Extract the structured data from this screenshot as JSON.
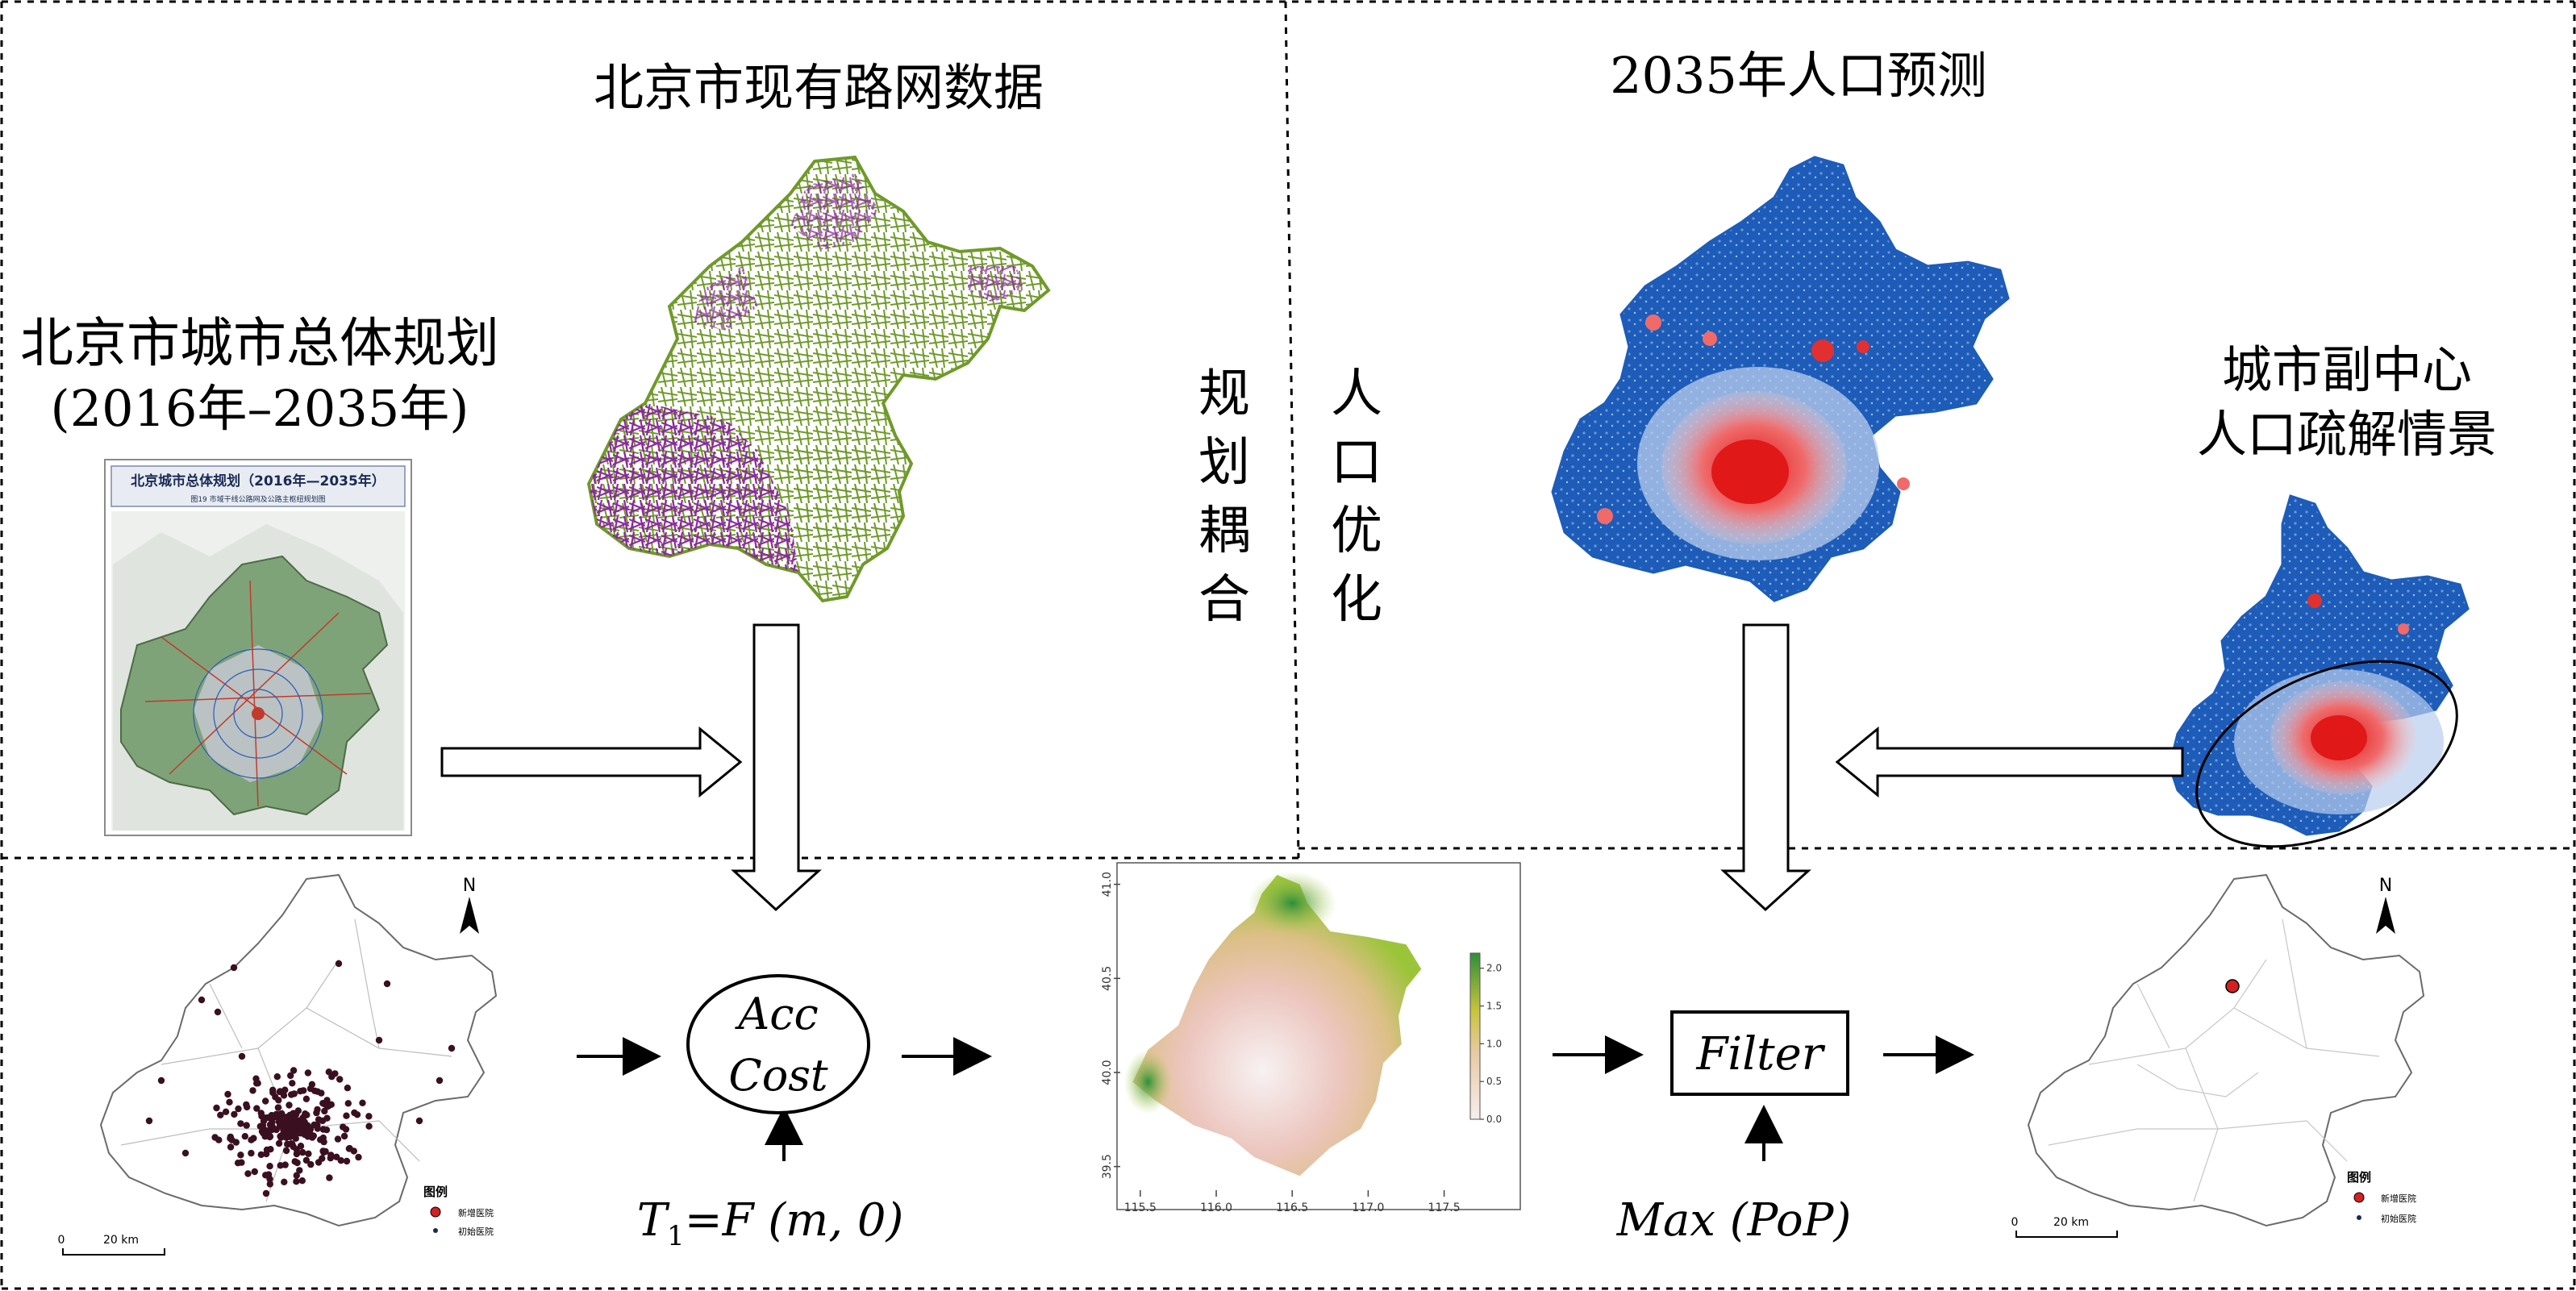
{
  "labels": {
    "road_network_title": "北京市现有路网数据",
    "population_title": "2035年人口预测",
    "master_plan_title_line1": "北京市城市总体规划",
    "master_plan_title_line2": "(2016年–2035年)",
    "planning_coupling": [
      "规",
      "划",
      "耦",
      "合"
    ],
    "population_optimization": [
      "人",
      "口",
      "优",
      "化"
    ],
    "subcenter_line1": "城市副中心",
    "subcenter_line2": "人口疏解情景",
    "acc_cost_line1": "Acc",
    "acc_cost_line2": "Cost",
    "filter": "Filter",
    "t1_formula_T": "T",
    "t1_formula_sub": "1",
    "t1_formula_rest": "=F (m, 0)",
    "max_pop": "Max (PoP)"
  },
  "master_plan_map": {
    "title": "北京城市总体规划（2016年—2035年）",
    "subtitle": "图19  市域干线公路网及公路主枢纽规划图"
  },
  "left_map": {
    "north": "N",
    "legend_title": "图例",
    "legend_items": [
      "新增医院",
      "初始医院"
    ],
    "scale_zero": "0",
    "scale_label": "20 km"
  },
  "right_map": {
    "north": "N",
    "legend_title": "图例",
    "legend_items": [
      "新增医院",
      "初始医院"
    ],
    "scale_zero": "0",
    "scale_label": "20 km"
  },
  "chart_data": {
    "type": "heatmap",
    "title": "",
    "xlabel": "",
    "ylabel": "",
    "x_ticks": [
      "115.5",
      "116.0",
      "116.5",
      "117.0",
      "117.5"
    ],
    "y_ticks": [
      "39.5",
      "40.0",
      "40.5",
      "41.0"
    ],
    "xlim": [
      115.4,
      117.55
    ],
    "ylim": [
      39.4,
      41.05
    ],
    "colorbar_ticks": [
      "0.0",
      "0.5",
      "1.0",
      "1.5",
      "2.0"
    ],
    "colorbar_range": [
      0,
      2.2
    ],
    "colors": {
      "low": "#f6eeee",
      "mid": "#e9c9a3",
      "high": "#2e8f3a"
    }
  },
  "colors": {
    "road_green": "#6f9a2a",
    "road_purple": "#8a1f9e",
    "pop_blue": "#1d5cb8",
    "pop_red": "#e23030",
    "hospital_dot": "#3a1020",
    "new_hospital": "#d42020"
  }
}
